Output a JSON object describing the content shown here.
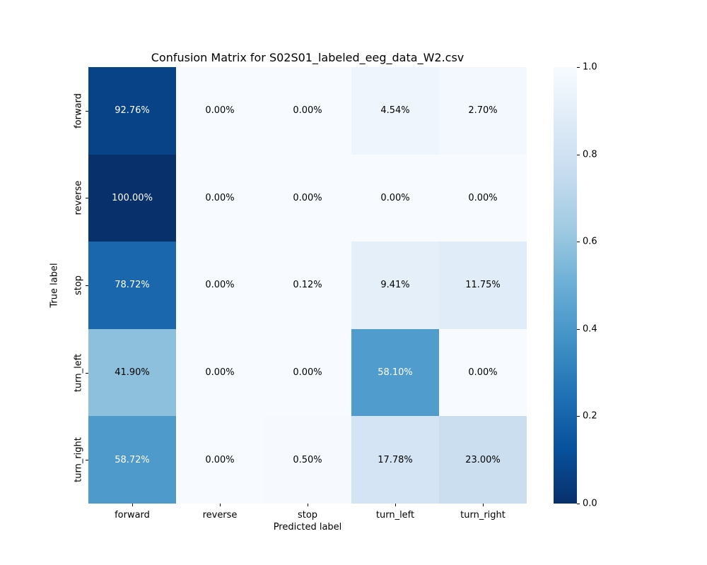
{
  "title": "Confusion Matrix for S02S01_labeled_eeg_data_W2.csv",
  "chart_data": {
    "type": "heatmap",
    "title": "Confusion Matrix for S02S01_labeled_eeg_data_W2.csv",
    "xlabel": "Predicted label",
    "ylabel": "True label",
    "x_categories": [
      "forward",
      "reverse",
      "stop",
      "turn_left",
      "turn_right"
    ],
    "y_categories": [
      "forward",
      "reverse",
      "stop",
      "turn_left",
      "turn_right"
    ],
    "values": [
      [
        0.9276,
        0.0,
        0.0,
        0.0454,
        0.027
      ],
      [
        1.0,
        0.0,
        0.0,
        0.0,
        0.0
      ],
      [
        0.7872,
        0.0,
        0.0012,
        0.0941,
        0.1175
      ],
      [
        0.419,
        0.0,
        0.0,
        0.581,
        0.0
      ],
      [
        0.5872,
        0.0,
        0.005,
        0.1778,
        0.23
      ]
    ],
    "cell_labels": [
      [
        "92.76%",
        "0.00%",
        "0.00%",
        "4.54%",
        "2.70%"
      ],
      [
        "100.00%",
        "0.00%",
        "0.00%",
        "0.00%",
        "0.00%"
      ],
      [
        "78.72%",
        "0.00%",
        "0.12%",
        "9.41%",
        "11.75%"
      ],
      [
        "41.90%",
        "0.00%",
        "0.00%",
        "58.10%",
        "0.00%"
      ],
      [
        "58.72%",
        "0.00%",
        "0.50%",
        "17.78%",
        "23.00%"
      ]
    ],
    "vmin": 0,
    "vmax": 1,
    "colormap": "Blues",
    "colormap_anchors": [
      "#f7fbff",
      "#deebf7",
      "#c6dbef",
      "#9ecae1",
      "#6baed6",
      "#4292c6",
      "#2171b5",
      "#08519c",
      "#08306b"
    ],
    "annotation_text_colors": {
      "light": "#ffffff",
      "dark": "#000000"
    },
    "colorbar": {
      "ticks": [
        "1.0",
        "0.8",
        "0.6",
        "0.4",
        "0.2",
        "0.0"
      ],
      "tick_values": [
        1.0,
        0.8,
        0.6,
        0.4,
        0.2,
        0.0
      ]
    },
    "legend_position": "right-colorbar",
    "grid": false
  }
}
